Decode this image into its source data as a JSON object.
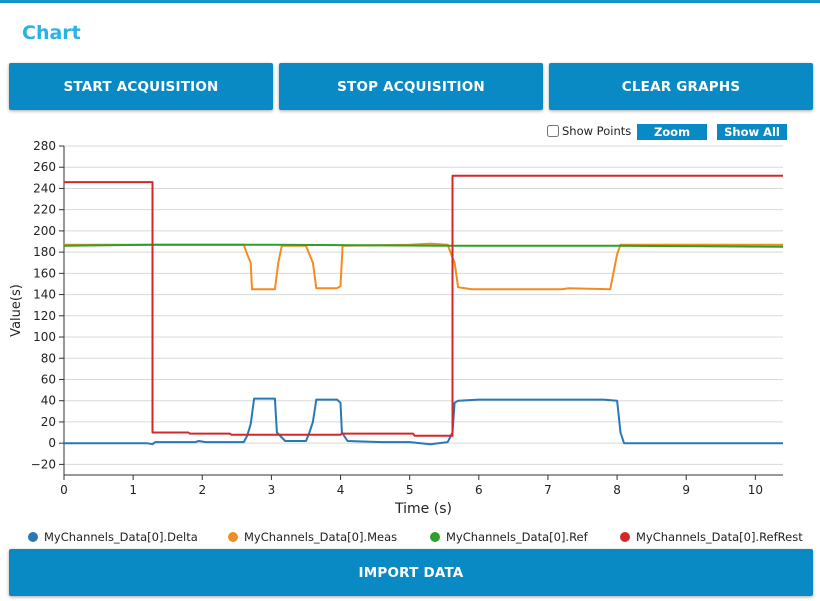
{
  "page": {
    "title": "Chart"
  },
  "buttons": {
    "start": "START ACQUISITION",
    "stop": "STOP ACQUISITION",
    "clear": "CLEAR GRAPHS",
    "import": "IMPORT DATA"
  },
  "controls": {
    "show_points": "Show Points",
    "zoom": "Zoom",
    "show_all": "Show All"
  },
  "colors": {
    "accent": "#0a8ac4",
    "title": "#29b2e6"
  },
  "chart_data": {
    "type": "line",
    "xlabel": "Time (s)",
    "ylabel": "Value(s)",
    "xlim": [
      0,
      10.4
    ],
    "ylim": [
      -30,
      280
    ],
    "xticks": [
      0,
      1,
      2,
      3,
      4,
      5,
      6,
      7,
      8,
      9,
      10
    ],
    "yticks": [
      -20,
      0,
      20,
      40,
      60,
      80,
      100,
      120,
      140,
      160,
      180,
      200,
      220,
      240,
      260,
      280
    ],
    "grid": true,
    "legend_position": "bottom",
    "series": [
      {
        "name": "MyChannels_Data[0].Delta",
        "color": "#2878b4",
        "points": [
          [
            0,
            0
          ],
          [
            1.2,
            0
          ],
          [
            1.28,
            -1
          ],
          [
            1.32,
            1
          ],
          [
            1.9,
            1
          ],
          [
            1.95,
            2
          ],
          [
            2.05,
            1
          ],
          [
            2.6,
            1
          ],
          [
            2.65,
            7
          ],
          [
            2.7,
            18
          ],
          [
            2.75,
            42
          ],
          [
            3.05,
            42
          ],
          [
            3.08,
            10
          ],
          [
            3.2,
            2
          ],
          [
            3.5,
            2
          ],
          [
            3.55,
            10
          ],
          [
            3.6,
            20
          ],
          [
            3.65,
            41
          ],
          [
            3.95,
            41
          ],
          [
            4.0,
            38
          ],
          [
            4.02,
            10
          ],
          [
            4.1,
            2
          ],
          [
            4.6,
            1
          ],
          [
            5.0,
            1
          ],
          [
            5.3,
            -1
          ],
          [
            5.55,
            1
          ],
          [
            5.62,
            10
          ],
          [
            5.65,
            38
          ],
          [
            5.7,
            40
          ],
          [
            6.0,
            41
          ],
          [
            7.8,
            41
          ],
          [
            8.0,
            40
          ],
          [
            8.05,
            10
          ],
          [
            8.1,
            0
          ],
          [
            10.4,
            0
          ]
        ]
      },
      {
        "name": "MyChannels_Data[0].Meas",
        "color": "#f28c20",
        "points": [
          [
            0,
            187
          ],
          [
            1.3,
            187
          ],
          [
            2.0,
            187
          ],
          [
            2.6,
            187
          ],
          [
            2.65,
            178
          ],
          [
            2.7,
            170
          ],
          [
            2.72,
            145
          ],
          [
            3.05,
            145
          ],
          [
            3.1,
            170
          ],
          [
            3.15,
            186
          ],
          [
            3.5,
            186
          ],
          [
            3.55,
            178
          ],
          [
            3.6,
            170
          ],
          [
            3.65,
            146
          ],
          [
            3.95,
            146
          ],
          [
            4.0,
            148
          ],
          [
            4.03,
            186
          ],
          [
            5.0,
            187
          ],
          [
            5.3,
            188
          ],
          [
            5.55,
            187
          ],
          [
            5.6,
            178
          ],
          [
            5.65,
            170
          ],
          [
            5.7,
            147
          ],
          [
            5.9,
            145
          ],
          [
            7.2,
            145
          ],
          [
            7.3,
            146
          ],
          [
            7.9,
            145
          ],
          [
            8.0,
            178
          ],
          [
            8.05,
            187
          ],
          [
            10.4,
            187
          ]
        ]
      },
      {
        "name": "MyChannels_Data[0].Ref",
        "color": "#2ca02c",
        "points": [
          [
            0,
            186
          ],
          [
            1.3,
            187
          ],
          [
            3.0,
            187
          ],
          [
            5.6,
            186
          ],
          [
            7.0,
            186
          ],
          [
            8.0,
            186
          ],
          [
            10.4,
            185
          ]
        ]
      },
      {
        "name": "MyChannels_Data[0].RefRest",
        "color": "#d62728",
        "points": [
          [
            0,
            246
          ],
          [
            1.28,
            246
          ],
          [
            1.28,
            10
          ],
          [
            1.8,
            10
          ],
          [
            1.82,
            9
          ],
          [
            2.4,
            9
          ],
          [
            2.42,
            8
          ],
          [
            4.0,
            8
          ],
          [
            4.02,
            9
          ],
          [
            5.05,
            9
          ],
          [
            5.07,
            7
          ],
          [
            5.62,
            7
          ],
          [
            5.62,
            252
          ],
          [
            10.4,
            252
          ]
        ]
      }
    ]
  }
}
